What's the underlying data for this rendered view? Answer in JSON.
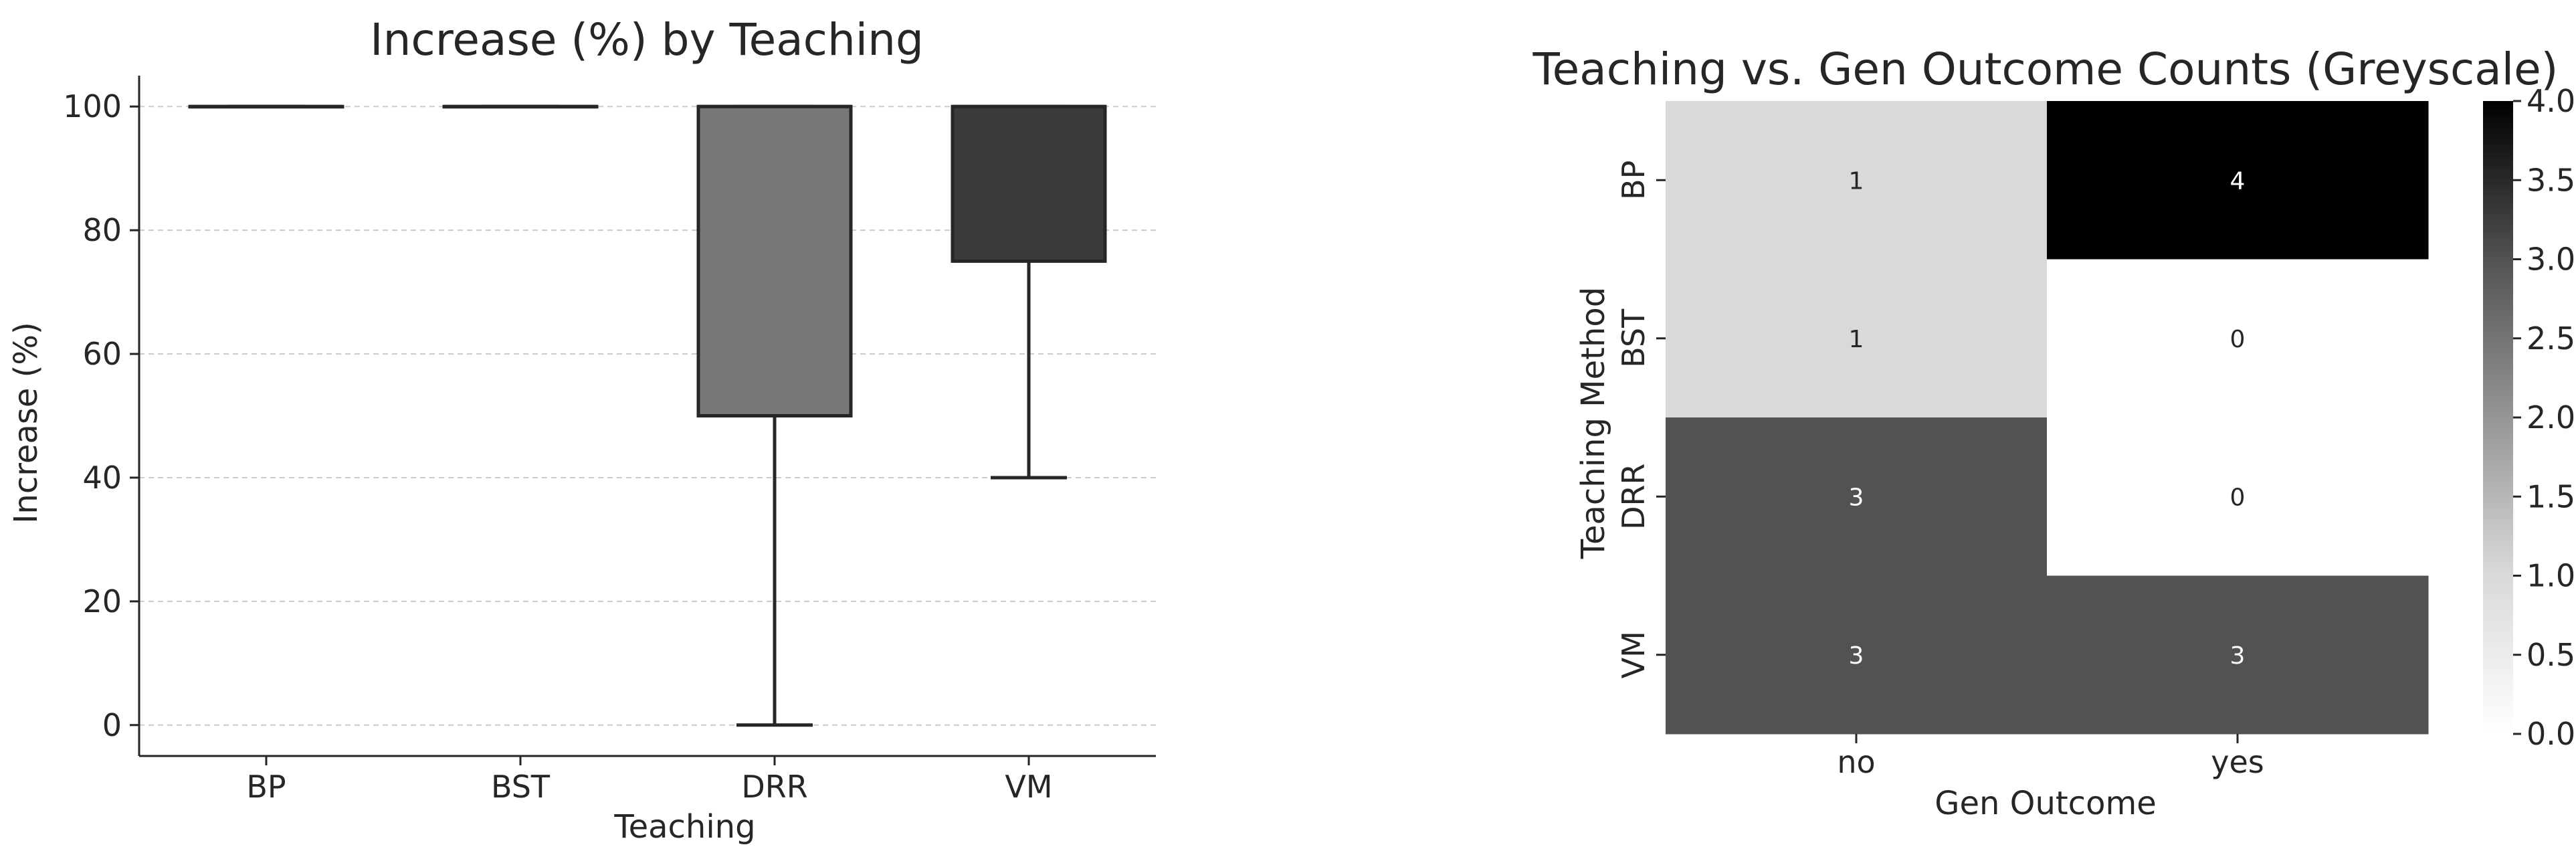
{
  "chart_data": [
    {
      "type": "box",
      "title": "Increase (%) by Teaching",
      "xlabel": "Teaching",
      "ylabel": "Increase (%)",
      "ylim": [
        -5,
        105
      ],
      "yticks": [
        0,
        20,
        40,
        60,
        80,
        100
      ],
      "grid": "horizontal dashed",
      "categories": [
        "BP",
        "BST",
        "DRR",
        "VM"
      ],
      "boxes": [
        {
          "category": "BP",
          "min": 100,
          "q1": 100,
          "median": 100,
          "q3": 100,
          "max": 100,
          "fill": "#8c8c8c"
        },
        {
          "category": "BST",
          "min": 100,
          "q1": 100,
          "median": 100,
          "q3": 100,
          "max": 100,
          "fill": "#8c8c8c"
        },
        {
          "category": "DRR",
          "min": 0,
          "q1": 50,
          "median": 100,
          "q3": 100,
          "max": 100,
          "fill": "#777777"
        },
        {
          "category": "VM",
          "min": 40,
          "q1": 75,
          "median": 100,
          "q3": 100,
          "max": 100,
          "fill": "#3b3b3b"
        }
      ]
    },
    {
      "type": "heatmap",
      "title": "Teaching vs. Gen Outcome Counts (Greyscale)",
      "xlabel": "Gen Outcome",
      "ylabel": "Teaching Method",
      "x_categories": [
        "no",
        "yes"
      ],
      "y_categories": [
        "BP",
        "BST",
        "DRR",
        "VM"
      ],
      "values": [
        [
          1,
          4
        ],
        [
          1,
          0
        ],
        [
          3,
          0
        ],
        [
          3,
          3
        ]
      ],
      "colorbar": {
        "vmin": 0,
        "vmax": 4,
        "ticks": [
          "0.0",
          "0.5",
          "1.0",
          "1.5",
          "2.0",
          "2.5",
          "3.0",
          "3.5",
          "4.0"
        ],
        "colormap": "Greys"
      }
    }
  ]
}
